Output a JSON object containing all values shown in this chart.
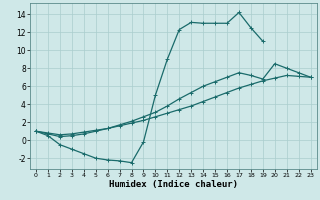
{
  "xlabel": "Humidex (Indice chaleur)",
  "background_color": "#cfe8e8",
  "grid_color": "#aacece",
  "line_color": "#1a6b6b",
  "xlim": [
    -0.5,
    23.5
  ],
  "ylim": [
    -3.2,
    15.2
  ],
  "xticks": [
    0,
    1,
    2,
    3,
    4,
    5,
    6,
    7,
    8,
    9,
    10,
    11,
    12,
    13,
    14,
    15,
    16,
    17,
    18,
    19,
    20,
    21,
    22,
    23
  ],
  "yticks": [
    -2,
    0,
    2,
    4,
    6,
    8,
    10,
    12,
    14
  ],
  "c1_x": [
    0,
    1,
    2,
    3,
    4,
    5,
    6,
    7,
    8,
    9,
    10,
    11,
    12,
    13,
    14,
    15,
    16,
    17,
    18,
    19
  ],
  "c1_y": [
    1.0,
    0.5,
    -0.5,
    -1.0,
    -1.5,
    -2.0,
    -2.2,
    -2.3,
    -2.5,
    -0.2,
    5.0,
    9.0,
    12.3,
    13.1,
    13.0,
    13.0,
    13.0,
    14.2,
    12.5,
    11.0
  ],
  "c2_x": [
    0,
    1,
    2,
    3,
    4,
    5,
    6,
    7,
    8,
    9,
    10,
    11,
    12,
    13,
    14,
    15,
    16,
    17,
    18,
    19,
    20,
    21,
    22,
    23
  ],
  "c2_y": [
    1.0,
    0.7,
    0.4,
    0.5,
    0.7,
    1.0,
    1.3,
    1.7,
    2.1,
    2.6,
    3.1,
    3.8,
    4.6,
    5.3,
    6.0,
    6.5,
    7.0,
    7.5,
    7.2,
    6.8,
    8.5,
    8.0,
    7.5,
    7.0
  ],
  "c3_x": [
    0,
    1,
    2,
    3,
    4,
    5,
    6,
    7,
    8,
    9,
    10,
    11,
    12,
    13,
    14,
    15,
    16,
    17,
    18,
    19,
    20,
    21,
    22,
    23
  ],
  "c3_y": [
    1.0,
    0.8,
    0.6,
    0.7,
    0.9,
    1.1,
    1.3,
    1.6,
    1.9,
    2.2,
    2.6,
    3.0,
    3.4,
    3.8,
    4.3,
    4.8,
    5.3,
    5.8,
    6.2,
    6.6,
    6.9,
    7.2,
    7.1,
    7.0
  ]
}
